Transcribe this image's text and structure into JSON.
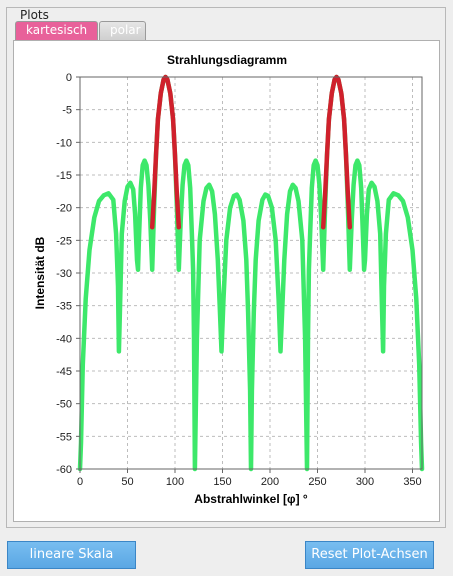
{
  "group_title": "Plots",
  "tabs": [
    {
      "label": "kartesisch",
      "active": true
    },
    {
      "label": "polar",
      "active": false
    }
  ],
  "buttons": {
    "linear_scale": "lineare Skala",
    "reset_axes": "Reset Plot-Achsen"
  },
  "colors": {
    "main_lobe": "#d0202c",
    "side_lobes": "#3de86a",
    "tab_active": "#e8619a",
    "button": "#5aa7e4"
  },
  "chart_data": {
    "type": "line",
    "title": "Strahlungsdiagramm",
    "xlabel": "Abstrahlwinkel [φ] °",
    "ylabel": "Intensität dB",
    "xlim": [
      0,
      360
    ],
    "ylim": [
      -60,
      0
    ],
    "xticks": [
      0,
      50,
      100,
      150,
      200,
      250,
      300,
      350
    ],
    "yticks": [
      0,
      -5,
      -10,
      -15,
      -20,
      -25,
      -30,
      -35,
      -40,
      -45,
      -50,
      -55,
      -60
    ],
    "grid": true,
    "series": [
      {
        "role": "side-lobes",
        "color": "#3de86a",
        "points": [
          [
            0,
            -60
          ],
          [
            1,
            -56
          ],
          [
            3,
            -44
          ],
          [
            6,
            -34
          ],
          [
            10,
            -26.5
          ],
          [
            15,
            -21.5
          ],
          [
            20,
            -19
          ],
          [
            25,
            -18.1
          ],
          [
            30,
            -17.8
          ],
          [
            35,
            -18.8
          ],
          [
            38,
            -24
          ],
          [
            40,
            -32
          ],
          [
            41,
            -42
          ],
          [
            42,
            -36
          ],
          [
            44,
            -24
          ],
          [
            47,
            -19
          ],
          [
            50,
            -16.8
          ],
          [
            53,
            -16.2
          ],
          [
            56,
            -17.2
          ],
          [
            58,
            -21
          ],
          [
            60,
            -28
          ],
          [
            61,
            -29.5
          ],
          [
            62,
            -25
          ],
          [
            64,
            -17
          ],
          [
            66,
            -13.5
          ],
          [
            68,
            -12.8
          ],
          [
            70,
            -13.5
          ],
          [
            72,
            -16.5
          ],
          [
            74,
            -22
          ],
          [
            76,
            -29.5
          ],
          [
            76,
            -29.5
          ],
          [
            78,
            -20
          ],
          [
            80,
            -12
          ],
          [
            82,
            -6.5
          ],
          [
            85,
            -2.5
          ],
          [
            88,
            -0.4
          ],
          [
            90,
            0
          ],
          [
            92,
            -0.4
          ],
          [
            95,
            -2.5
          ],
          [
            98,
            -6.5
          ],
          [
            100,
            -12
          ],
          [
            102,
            -20
          ],
          [
            104,
            -29.5
          ],
          [
            106,
            -22
          ],
          [
            108,
            -16.5
          ],
          [
            110,
            -13.5
          ],
          [
            112,
            -12.8
          ],
          [
            114,
            -13.5
          ],
          [
            116,
            -17
          ],
          [
            118,
            -25
          ],
          [
            119,
            -29.5
          ],
          [
            120,
            -40
          ],
          [
            121,
            -60
          ],
          [
            123,
            -40
          ],
          [
            126,
            -25
          ],
          [
            130,
            -19
          ],
          [
            133,
            -17
          ],
          [
            136,
            -16.5
          ],
          [
            139,
            -17.5
          ],
          [
            142,
            -21
          ],
          [
            145,
            -28
          ],
          [
            147,
            -35
          ],
          [
            149,
            -42
          ],
          [
            151,
            -34
          ],
          [
            154,
            -25
          ],
          [
            158,
            -20
          ],
          [
            162,
            -18.2
          ],
          [
            165,
            -18
          ],
          [
            168,
            -18.8
          ],
          [
            172,
            -22
          ],
          [
            175,
            -28
          ],
          [
            177,
            -36
          ],
          [
            179,
            -48
          ],
          [
            180,
            -60
          ],
          [
            181,
            -48
          ],
          [
            183,
            -36
          ],
          [
            185,
            -28
          ],
          [
            188,
            -22
          ],
          [
            192,
            -18.8
          ],
          [
            195,
            -18
          ],
          [
            198,
            -18.2
          ],
          [
            202,
            -20
          ],
          [
            206,
            -25
          ],
          [
            209,
            -34
          ],
          [
            211,
            -42
          ],
          [
            213,
            -35
          ],
          [
            215,
            -28
          ],
          [
            218,
            -21
          ],
          [
            221,
            -17.5
          ],
          [
            224,
            -16.5
          ],
          [
            227,
            -17
          ],
          [
            230,
            -19
          ],
          [
            234,
            -25
          ],
          [
            237,
            -40
          ],
          [
            239,
            -60
          ],
          [
            240,
            -40
          ],
          [
            241,
            -29.5
          ],
          [
            242,
            -25
          ],
          [
            244,
            -17
          ],
          [
            246,
            -13.5
          ],
          [
            248,
            -12.8
          ],
          [
            250,
            -13.5
          ],
          [
            252,
            -16.5
          ],
          [
            254,
            -22
          ],
          [
            256,
            -29.5
          ],
          [
            258,
            -20
          ],
          [
            260,
            -12
          ],
          [
            262,
            -6.5
          ],
          [
            265,
            -2.5
          ],
          [
            268,
            -0.4
          ],
          [
            270,
            0
          ],
          [
            272,
            -0.4
          ],
          [
            275,
            -2.5
          ],
          [
            278,
            -6.5
          ],
          [
            280,
            -12
          ],
          [
            282,
            -20
          ],
          [
            284,
            -29.5
          ],
          [
            286,
            -22
          ],
          [
            288,
            -16.5
          ],
          [
            290,
            -13.5
          ],
          [
            292,
            -12.8
          ],
          [
            294,
            -13.5
          ],
          [
            296,
            -17
          ],
          [
            298,
            -25
          ],
          [
            299,
            -29.5
          ],
          [
            300,
            -28
          ],
          [
            302,
            -21
          ],
          [
            304,
            -17.2
          ],
          [
            307,
            -16.2
          ],
          [
            310,
            -16.8
          ],
          [
            313,
            -19
          ],
          [
            316,
            -24
          ],
          [
            318,
            -36
          ],
          [
            319,
            -42
          ],
          [
            320,
            -32
          ],
          [
            322,
            -24
          ],
          [
            325,
            -18.8
          ],
          [
            330,
            -17.8
          ],
          [
            335,
            -18.1
          ],
          [
            340,
            -19
          ],
          [
            345,
            -21.5
          ],
          [
            350,
            -26.5
          ],
          [
            354,
            -34
          ],
          [
            357,
            -44
          ],
          [
            359,
            -56
          ],
          [
            360,
            -60
          ]
        ]
      },
      {
        "role": "main-lobe-1",
        "color": "#d0202c",
        "points": [
          [
            76,
            -23
          ],
          [
            78,
            -18
          ],
          [
            80,
            -12
          ],
          [
            82,
            -6.5
          ],
          [
            85,
            -2.5
          ],
          [
            88,
            -0.4
          ],
          [
            90,
            0
          ],
          [
            92,
            -0.4
          ],
          [
            95,
            -2.5
          ],
          [
            98,
            -6.5
          ],
          [
            100,
            -12
          ],
          [
            102,
            -18
          ],
          [
            104,
            -23
          ]
        ]
      },
      {
        "role": "main-lobe-2",
        "color": "#d0202c",
        "points": [
          [
            256,
            -23
          ],
          [
            258,
            -18
          ],
          [
            260,
            -12
          ],
          [
            262,
            -6.5
          ],
          [
            265,
            -2.5
          ],
          [
            268,
            -0.4
          ],
          [
            270,
            0
          ],
          [
            272,
            -0.4
          ],
          [
            275,
            -2.5
          ],
          [
            278,
            -6.5
          ],
          [
            280,
            -12
          ],
          [
            282,
            -18
          ],
          [
            284,
            -23
          ]
        ]
      }
    ]
  }
}
